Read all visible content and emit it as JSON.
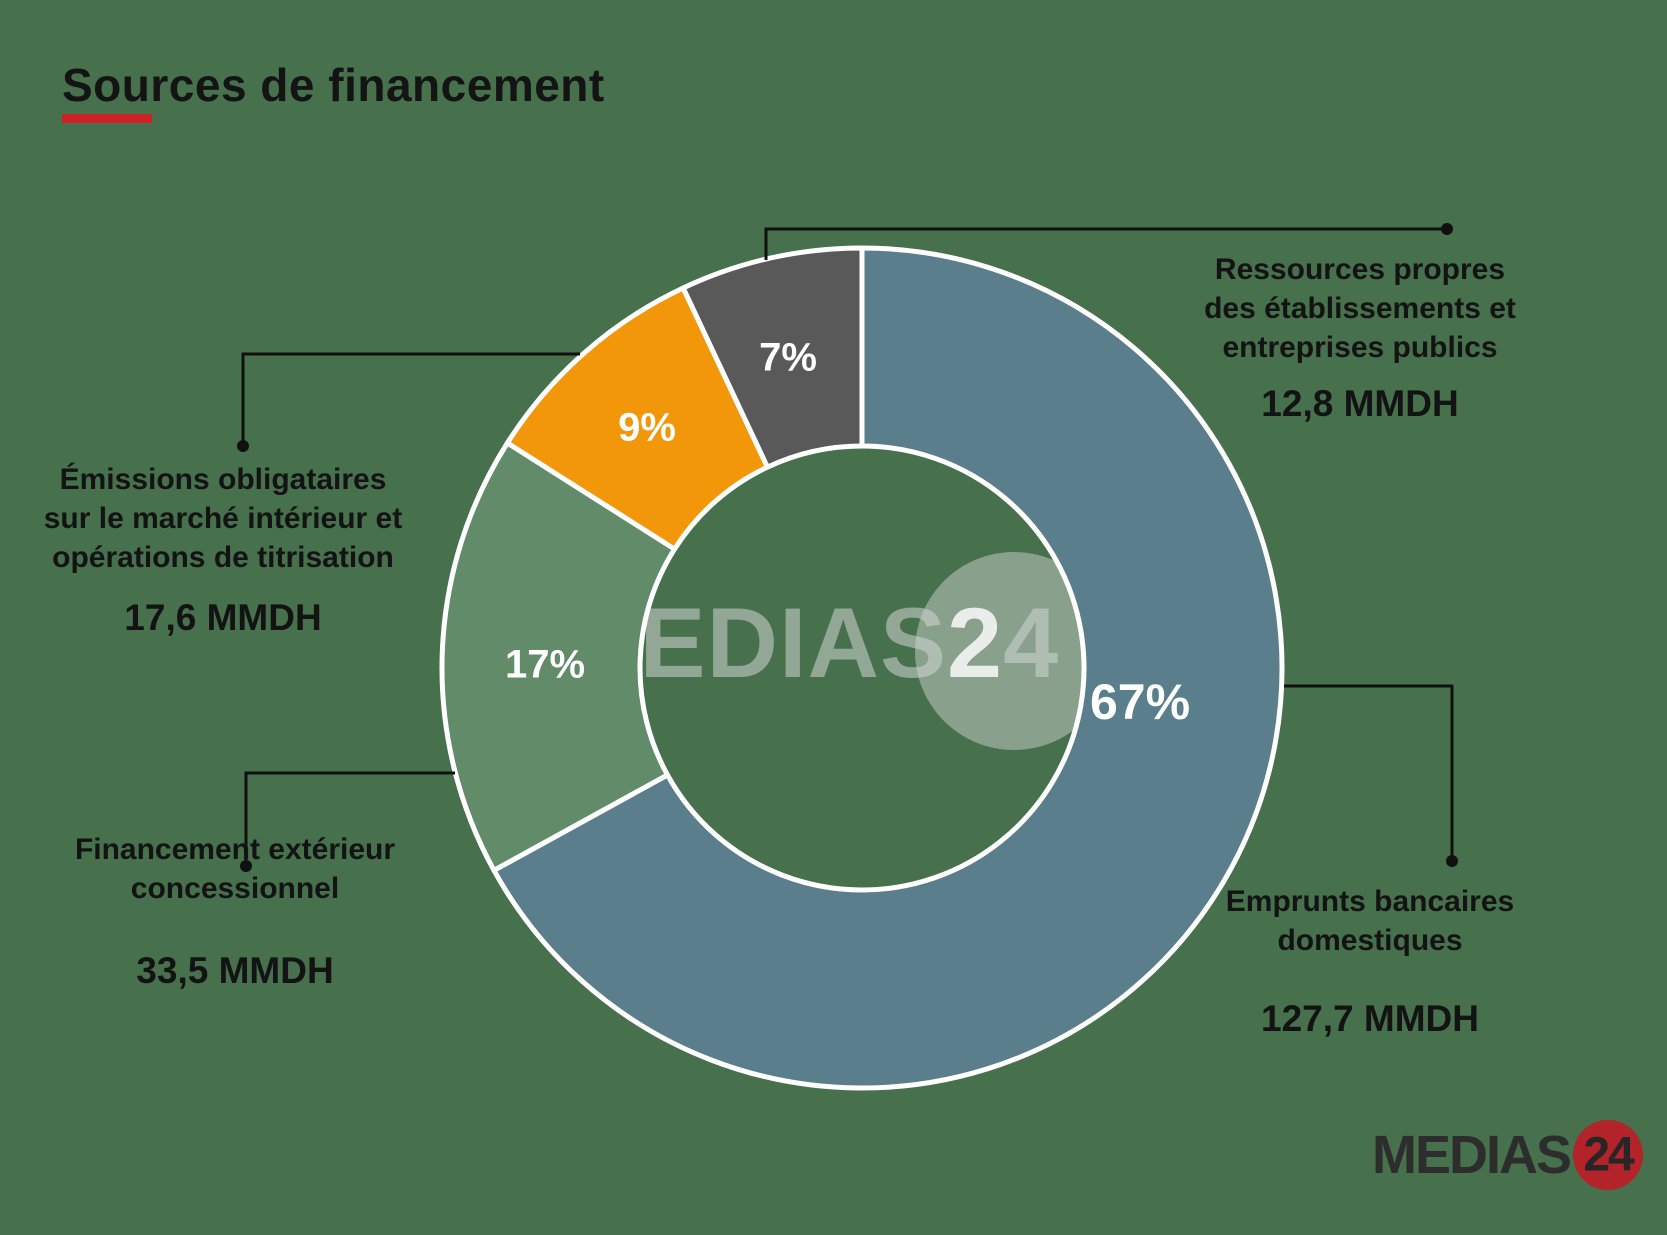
{
  "title": {
    "text": "Sources de financement"
  },
  "chart_data": {
    "type": "pie",
    "subtype": "donut",
    "title": "Sources de financement",
    "unit": "MMDH",
    "start_angle_deg": 0,
    "direction": "clockwise",
    "legend": "callout-labels",
    "slices": [
      {
        "label": "Emprunts bancaires domestiques",
        "pct": 67,
        "pct_label": "67%",
        "value": 127.7,
        "value_label": "127,7 MMDH",
        "color": "#5A7E8B"
      },
      {
        "label": "Financement extérieur concessionnel",
        "pct": 17,
        "pct_label": "17%",
        "value": 33.5,
        "value_label": "33,5 MMDH",
        "color": "#618B69"
      },
      {
        "label": "Émissions obligataires sur le marché intérieur et opérations de titrisation",
        "pct": 9,
        "pct_label": "9%",
        "value": 17.6,
        "value_label": "17,6 MMDH",
        "color": "#F2960A"
      },
      {
        "label": "Ressources propres des établissements et entreprises publics",
        "pct": 7,
        "pct_label": "7%",
        "value": 12.8,
        "value_label": "12,8 MMDH",
        "color": "#595959"
      }
    ]
  },
  "callouts": {
    "top_right": {
      "lines": [
        "Ressources propres",
        "des établissements et",
        "entreprises publics"
      ],
      "value": "12,8 MMDH"
    },
    "left_top": {
      "lines": [
        "Émissions obligataires",
        "sur le marché intérieur et",
        "opérations de titrisation"
      ],
      "value": "17,6 MMDH"
    },
    "left_bottom": {
      "lines": [
        "Financement extérieur",
        "concessionnel"
      ],
      "value": "33,5 MMDH"
    },
    "right_bottom": {
      "lines": [
        "Emprunts bancaires",
        "domestiques"
      ],
      "value": "127,7 MMDH"
    }
  },
  "watermark": {
    "prefix": "MEDIAS",
    "two": "2",
    "four": "4"
  },
  "logo": {
    "text": "MEDIAS",
    "suffix": "24"
  }
}
